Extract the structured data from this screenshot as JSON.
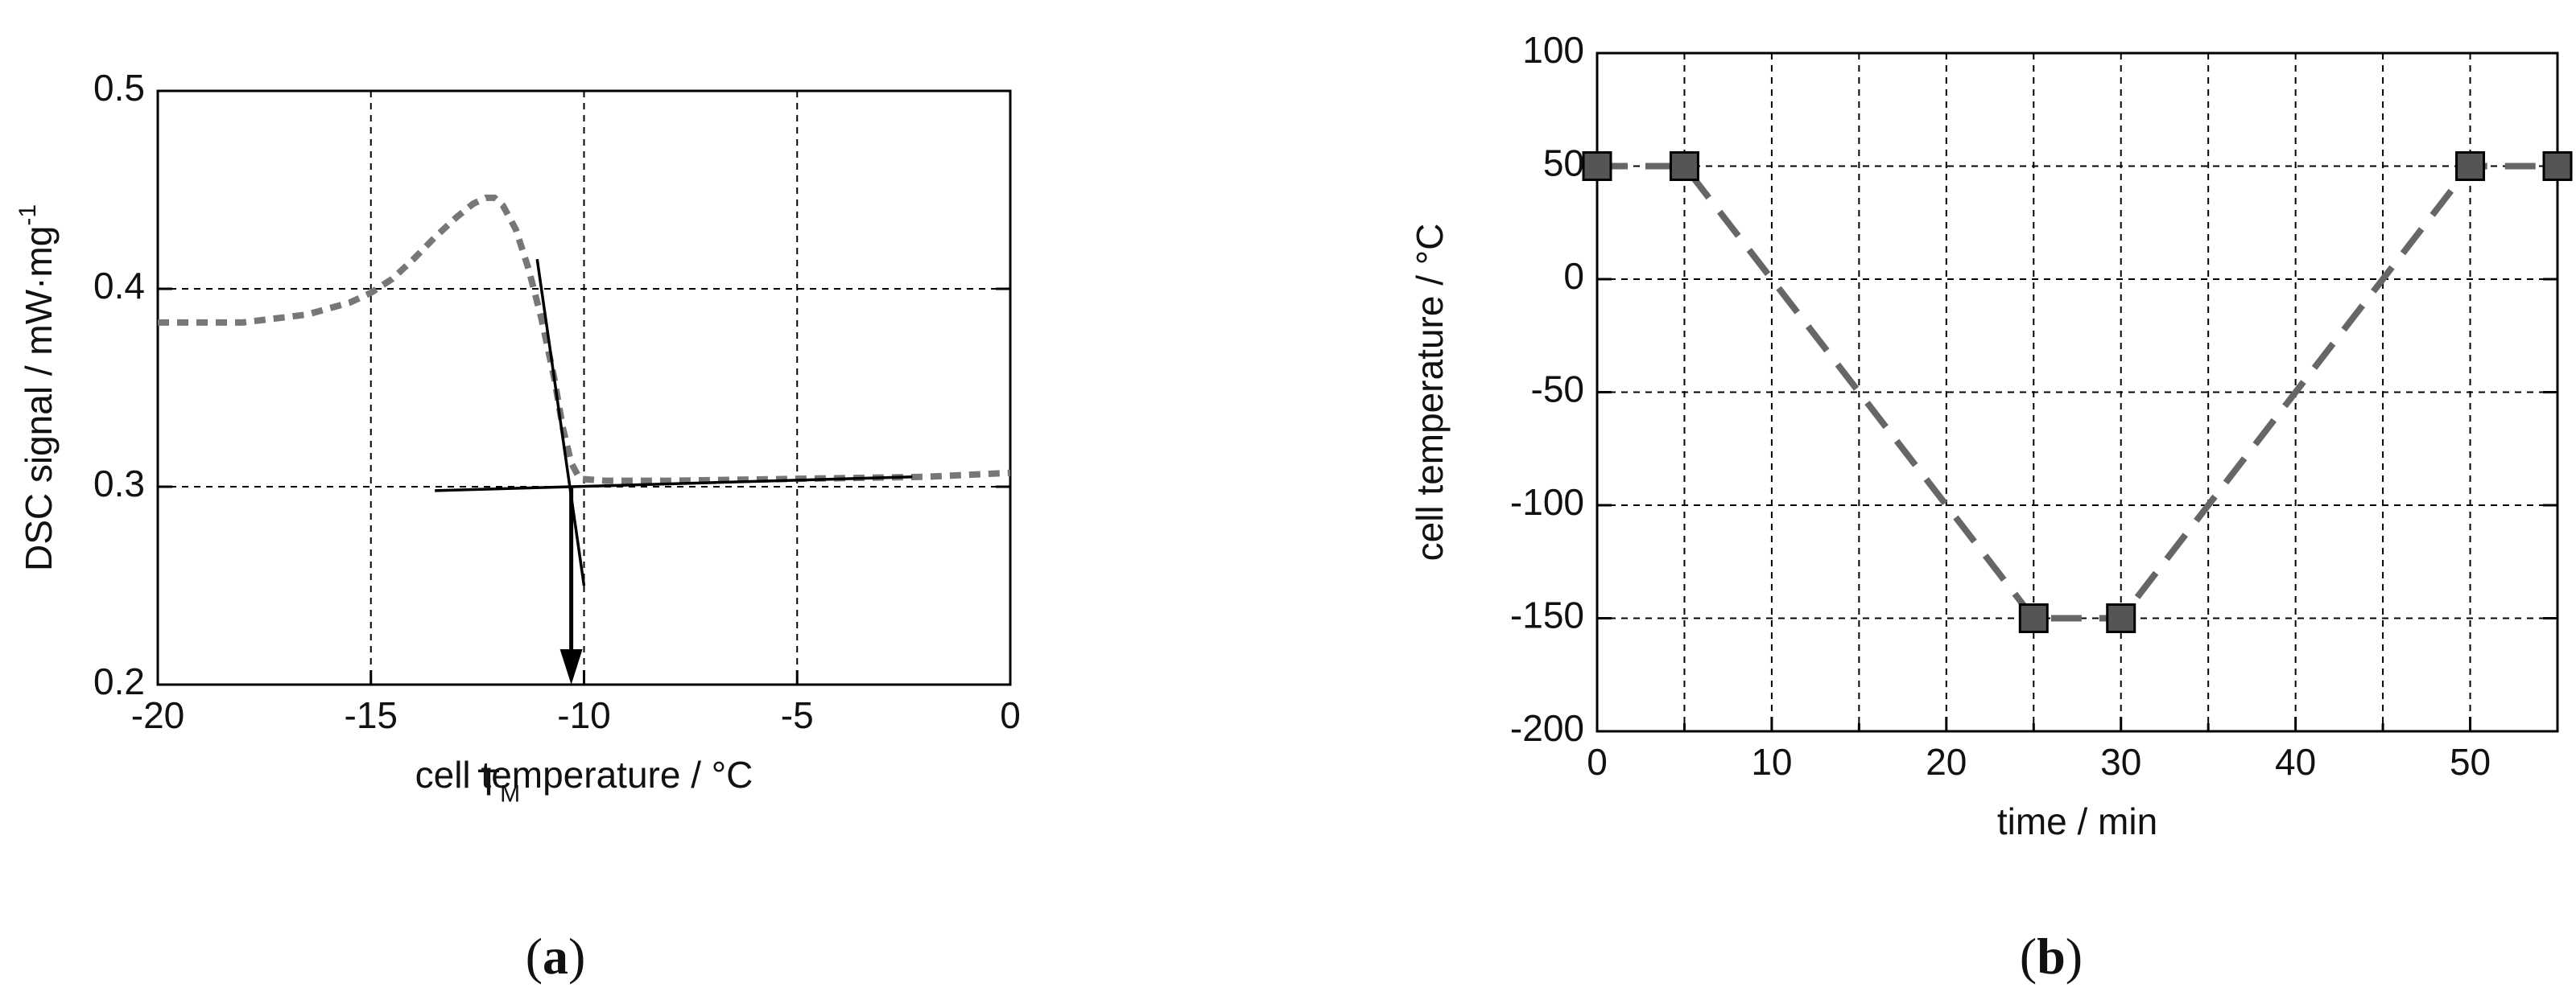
{
  "chart_data": [
    {
      "type": "line",
      "caption": {
        "open": "(",
        "letter": "a",
        "close": ")"
      },
      "xlabel": "cell temperature / °C",
      "ylabel": {
        "text": "DSC signal / mW·mg",
        "superscript": "-1"
      },
      "xlim": [
        -20,
        0
      ],
      "xticks": [
        -20,
        -15,
        -10,
        -5,
        0
      ],
      "ylim": [
        0.2,
        0.5
      ],
      "yticks": [
        0.2,
        0.3,
        0.4,
        0.5
      ],
      "grid": true,
      "color": "#777777",
      "line_style": "dashed",
      "x": [
        -20,
        -18,
        -16.5,
        -15.5,
        -15,
        -14.5,
        -14,
        -13.5,
        -13,
        -12.6,
        -12.3,
        -12.1,
        -11.9,
        -11.6,
        -11.3,
        -11,
        -10.7,
        -10.5,
        -10.3,
        -10.1,
        -9.5,
        -8,
        -5,
        -2,
        0
      ],
      "values": [
        0.383,
        0.383,
        0.387,
        0.393,
        0.398,
        0.405,
        0.415,
        0.426,
        0.436,
        0.443,
        0.446,
        0.446,
        0.442,
        0.43,
        0.41,
        0.385,
        0.355,
        0.33,
        0.312,
        0.304,
        0.303,
        0.303,
        0.304,
        0.305,
        0.307
      ],
      "annotations": {
        "tangent_lines": [
          {
            "x": [
              -11.1,
              -10
            ],
            "y": [
              0.415,
              0.25
            ]
          },
          {
            "x": [
              -13.5,
              -2.3
            ],
            "y": [
              0.298,
              0.305
            ]
          }
        ],
        "arrow": {
          "x": [
            -10.3,
            -10.3
          ],
          "y": [
            0.3,
            0.2
          ]
        },
        "label": {
          "text": "T",
          "subscript": "M"
        }
      }
    },
    {
      "type": "line",
      "caption": {
        "open": "(",
        "letter": "b",
        "close": ")"
      },
      "xlabel": "time / min",
      "ylabel": {
        "text": "cell temperature / °C"
      },
      "xlim": [
        0,
        55
      ],
      "xticks": [
        0,
        10,
        20,
        30,
        40,
        50
      ],
      "xminorticks": [
        5,
        15,
        25,
        35,
        45,
        55
      ],
      "ylim": [
        -200,
        100
      ],
      "yticks": [
        -200,
        -150,
        -100,
        -50,
        0,
        50,
        100
      ],
      "grid": true,
      "color": "#666666",
      "line_style": "dashed",
      "marker": "square",
      "marker_color": "#555555",
      "x": [
        0,
        5,
        25,
        30,
        50,
        55
      ],
      "values": [
        50,
        50,
        -150,
        -150,
        50,
        50
      ]
    }
  ]
}
